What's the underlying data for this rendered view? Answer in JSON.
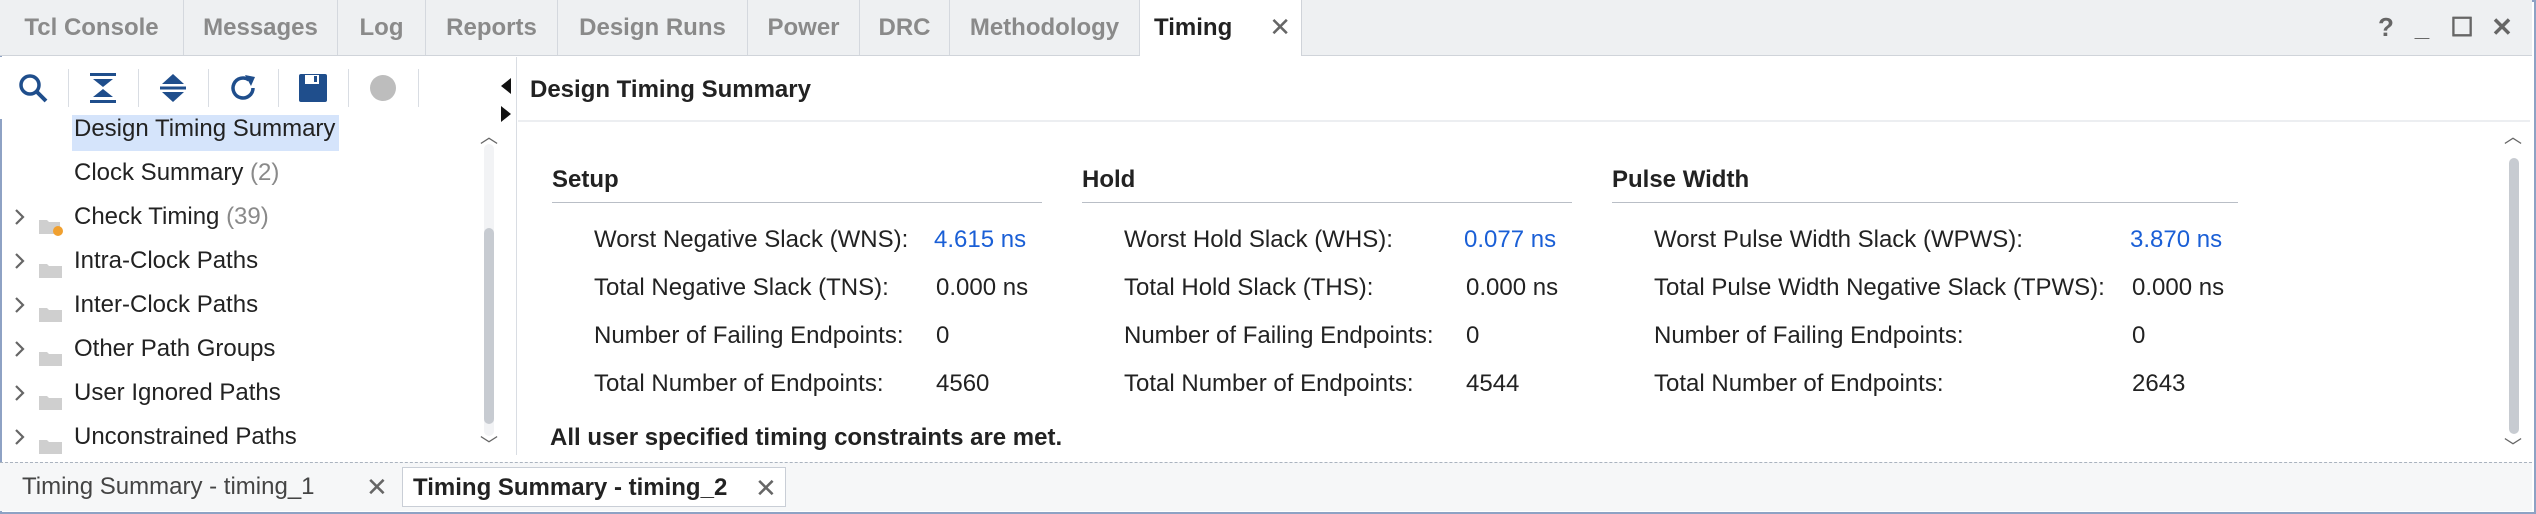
{
  "top_tabs": [
    {
      "label": "Tcl Console"
    },
    {
      "label": "Messages"
    },
    {
      "label": "Log"
    },
    {
      "label": "Reports"
    },
    {
      "label": "Design Runs"
    },
    {
      "label": "Power"
    },
    {
      "label": "DRC"
    },
    {
      "label": "Methodology"
    },
    {
      "label": "Timing",
      "active": true
    }
  ],
  "close_glyph": "✕",
  "window_controls": {
    "help": "?",
    "minimize": "_",
    "restore": "☐",
    "close": "✕"
  },
  "toolbar_icons": [
    "search-icon",
    "collapse-all-icon",
    "expand-all-icon",
    "refresh-icon",
    "save-icon",
    "stop-icon"
  ],
  "tree": {
    "items": [
      {
        "label": "Design Timing Summary",
        "count": "",
        "selected": true,
        "expandable": false
      },
      {
        "label": "Clock Summary",
        "count": "(2)",
        "expandable": false
      },
      {
        "label": "Check Timing",
        "count": "(39)",
        "expandable": true,
        "folder": "warning"
      },
      {
        "label": "Intra-Clock Paths",
        "count": "",
        "expandable": true,
        "folder": "plain"
      },
      {
        "label": "Inter-Clock Paths",
        "count": "",
        "expandable": true,
        "folder": "plain"
      },
      {
        "label": "Other Path Groups",
        "count": "",
        "expandable": true,
        "folder": "plain"
      },
      {
        "label": "User Ignored Paths",
        "count": "",
        "expandable": true,
        "folder": "plain"
      },
      {
        "label": "Unconstrained Paths",
        "count": "",
        "expandable": true,
        "folder": "plain"
      }
    ]
  },
  "main": {
    "title": "Design Timing Summary",
    "setup": {
      "title": "Setup",
      "rows": [
        {
          "label": "Worst Negative Slack (WNS):",
          "value": "4.615 ns",
          "link": true
        },
        {
          "label": "Total Negative Slack (TNS):",
          "value": "0.000 ns"
        },
        {
          "label": "Number of Failing Endpoints:",
          "value": "0"
        },
        {
          "label": "Total Number of Endpoints:",
          "value": "4560"
        }
      ]
    },
    "hold": {
      "title": "Hold",
      "rows": [
        {
          "label": "Worst Hold Slack (WHS):",
          "value": "0.077 ns",
          "link": true
        },
        {
          "label": "Total Hold Slack (THS):",
          "value": "0.000 ns"
        },
        {
          "label": "Number of Failing Endpoints:",
          "value": "0"
        },
        {
          "label": "Total Number of Endpoints:",
          "value": "4544"
        }
      ]
    },
    "pulse": {
      "title": "Pulse Width",
      "rows": [
        {
          "label": "Worst Pulse Width Slack (WPWS):",
          "value": "3.870 ns",
          "link": true
        },
        {
          "label": "Total Pulse Width Negative Slack (TPWS):",
          "value": "0.000 ns"
        },
        {
          "label": "Number of Failing Endpoints:",
          "value": "0"
        },
        {
          "label": "Total Number of Endpoints:",
          "value": "2643"
        }
      ]
    },
    "status": "All user specified timing constraints are met."
  },
  "bottom_tabs": [
    {
      "label": "Timing Summary - timing_1"
    },
    {
      "label": "Timing Summary - timing_2",
      "active": true
    }
  ],
  "colors": {
    "link": "#1a5fd6",
    "accent_icon": "#1f4e8c",
    "selection": "#d5e4fb"
  }
}
